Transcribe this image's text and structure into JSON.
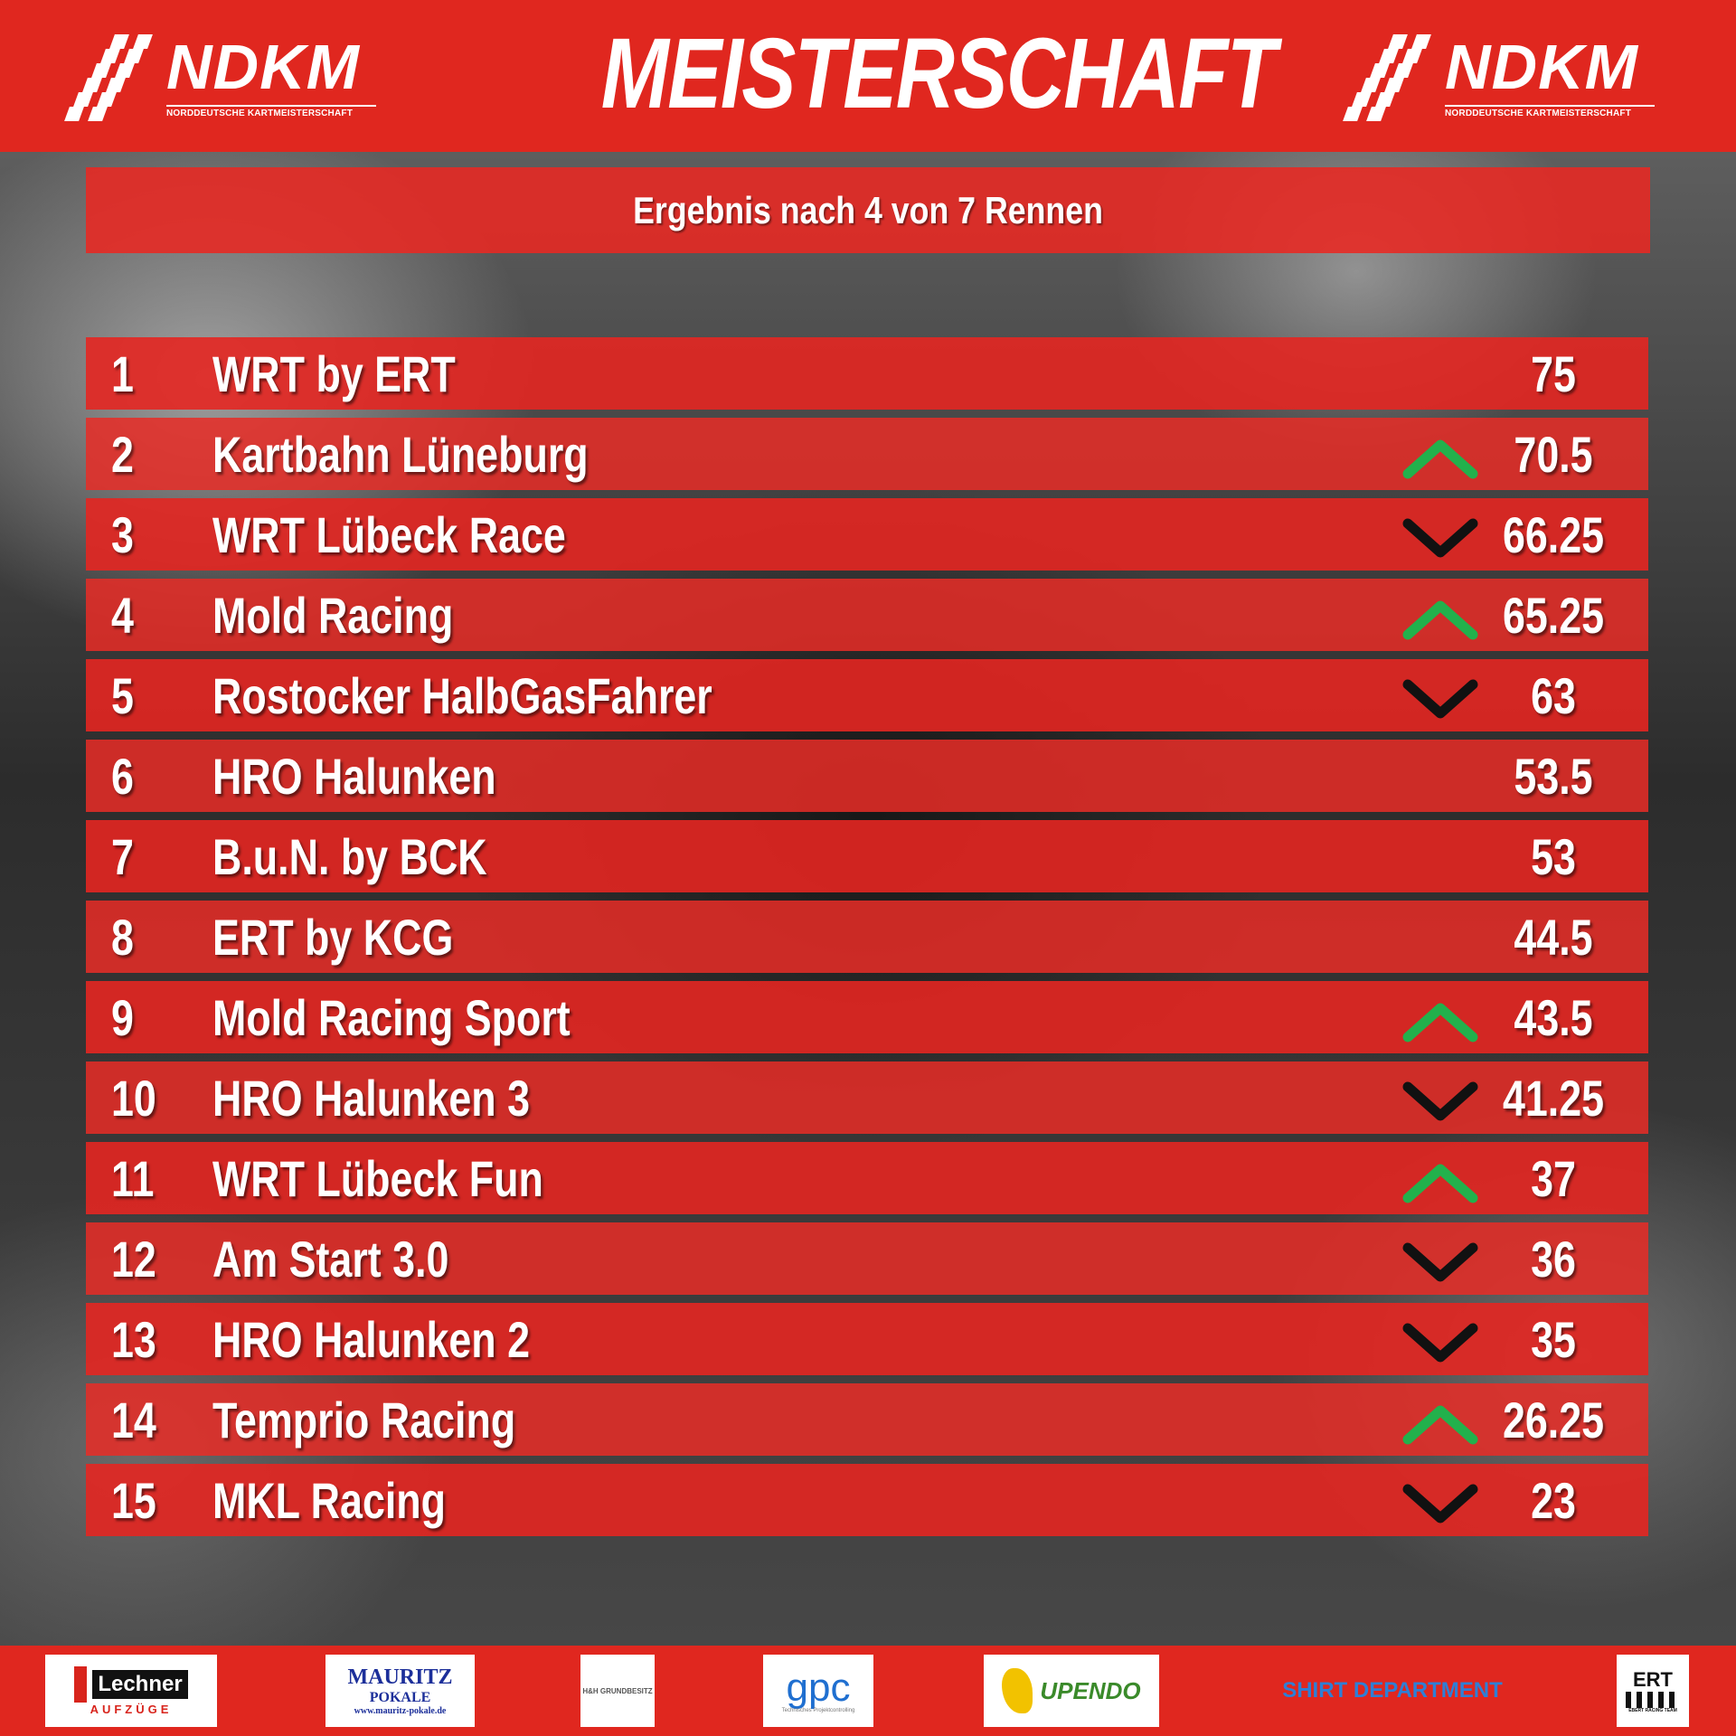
{
  "header": {
    "title": "MEISTERSCHAFT",
    "logo_text": "NDKM",
    "logo_subtext": "NORDDEUTSCHE KARTMEISTERSCHAFT"
  },
  "subtitle": "Ergebnis nach 4 von 7 Rennen",
  "standings": [
    {
      "pos": "1",
      "team": "WRT by ERT",
      "trend": "none",
      "points": "75"
    },
    {
      "pos": "2",
      "team": "Kartbahn Lüneburg",
      "trend": "up",
      "points": "70.5"
    },
    {
      "pos": "3",
      "team": "WRT Lübeck Race",
      "trend": "down",
      "points": "66.25"
    },
    {
      "pos": "4",
      "team": "Mold Racing",
      "trend": "up",
      "points": "65.25"
    },
    {
      "pos": "5",
      "team": "Rostocker HalbGasFahrer",
      "trend": "down",
      "points": "63"
    },
    {
      "pos": "6",
      "team": "HRO Halunken",
      "trend": "none",
      "points": "53.5"
    },
    {
      "pos": "7",
      "team": "B.u.N. by BCK",
      "trend": "none",
      "points": "53"
    },
    {
      "pos": "8",
      "team": "ERT by KCG",
      "trend": "none",
      "points": "44.5"
    },
    {
      "pos": "9",
      "team": "Mold Racing Sport",
      "trend": "up",
      "points": "43.5"
    },
    {
      "pos": "10",
      "team": "HRO Halunken 3",
      "trend": "down",
      "points": "41.25"
    },
    {
      "pos": "11",
      "team": "WRT Lübeck Fun",
      "trend": "up",
      "points": "37"
    },
    {
      "pos": "12",
      "team": "Am Start 3.0",
      "trend": "down",
      "points": "36"
    },
    {
      "pos": "13",
      "team": "HRO Halunken 2",
      "trend": "down",
      "points": "35"
    },
    {
      "pos": "14",
      "team": "Temprio Racing",
      "trend": "up",
      "points": "26.25"
    },
    {
      "pos": "15",
      "team": "MKL Racing",
      "trend": "down",
      "points": "23"
    }
  ],
  "sponsors": {
    "lechner": {
      "name": "Lechner",
      "sub": "AUFZÜGE"
    },
    "mauritz": {
      "name": "MAURITZ",
      "sub": "POKALE",
      "url": "www.mauritz-pokale.de"
    },
    "hh": {
      "name": "H&H GRUNDBESITZ"
    },
    "gpc": {
      "name": "gpc",
      "sub": "Technisches Projektcontrolling"
    },
    "upendo": {
      "name": "UPENDO"
    },
    "shirt": {
      "name": "SHIRT DEPARTMENT"
    },
    "ert": {
      "name": "ERT",
      "sub": "EBERT RACING TEAM"
    }
  },
  "colors": {
    "brand_red": "#e0271f",
    "row_red": "#e42621",
    "trend_up": "#22b14c",
    "trend_down": "#111111",
    "text": "#ffffff"
  },
  "icons": {
    "up": "chevron-up-icon",
    "down": "chevron-down-icon"
  }
}
